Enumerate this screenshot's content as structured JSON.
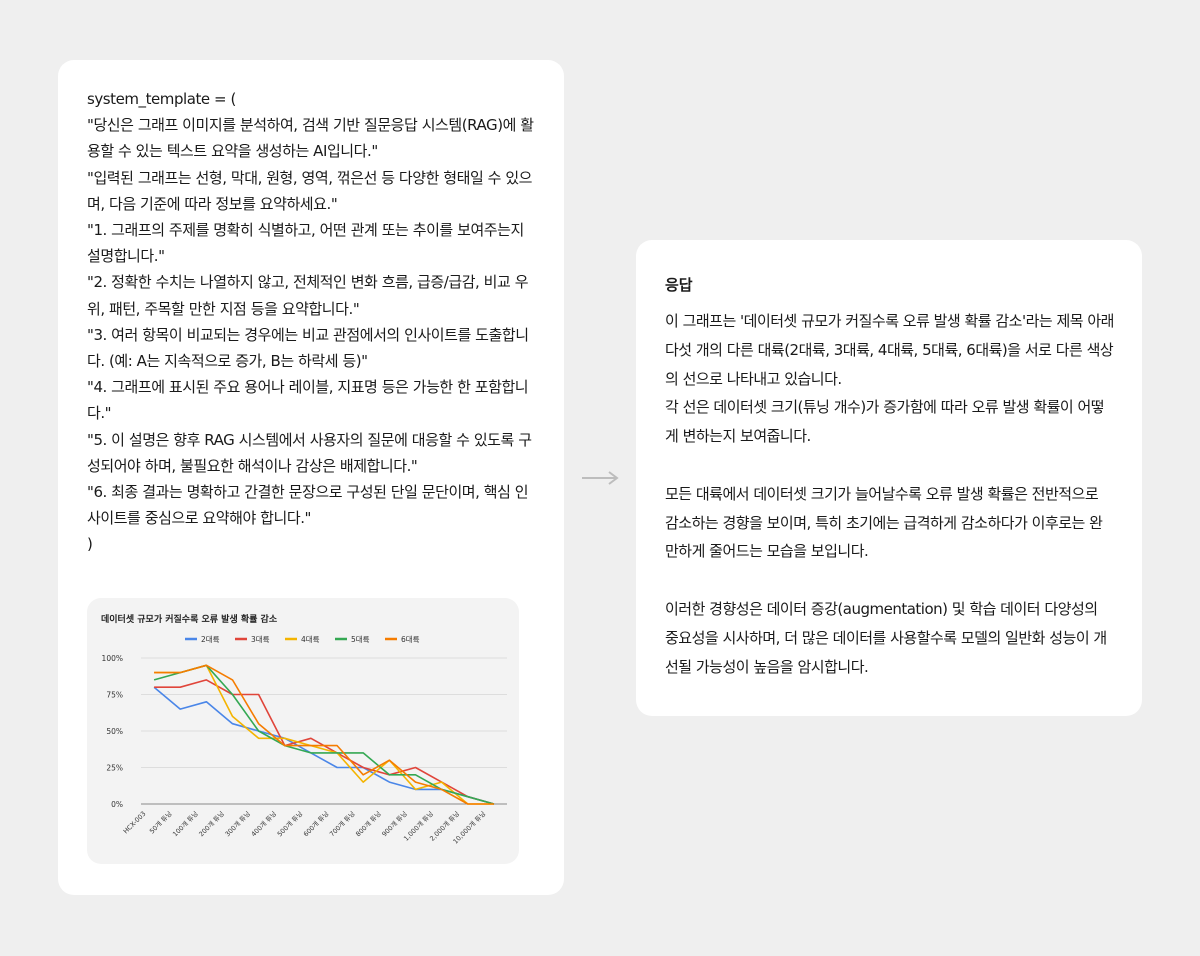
{
  "prompt": {
    "lines": [
      "system_template = (",
      "\"당신은 그래프 이미지를 분석하여, 검색 기반 질문응답 시스템(RAG)에 활용할 수 있는 텍스트 요약을 생성하는 AI입니다.\"",
      "\"입력된 그래프는 선형, 막대, 원형, 영역, 꺾은선 등 다양한 형태일 수 있으며, 다음 기준에 따라 정보를 요약하세요.\"",
      "\"1. 그래프의 주제를 명확히 식별하고, 어떤 관계 또는 추이를 보여주는지 설명합니다.\"",
      "\"2. 정확한 수치는 나열하지 않고, 전체적인 변화 흐름, 급증/급감, 비교 우위, 패턴, 주목할 만한 지점 등을 요약합니다.\"",
      "\"3. 여러 항목이 비교되는 경우에는 비교 관점에서의 인사이트를 도출합니다. (예: A는 지속적으로 증가, B는 하락세 등)\"",
      "\"4. 그래프에 표시된 주요 용어나 레이블, 지표명 등은 가능한 한 포함합니다.\"",
      "\"5. 이 설명은 향후 RAG 시스템에서 사용자의 질문에 대응할 수 있도록 구성되어야 하며, 불필요한 해석이나 감상은 배제합니다.\"",
      "\"6. 최종 결과는 명확하고 간결한 문장으로 구성된 단일 문단이며, 핵심 인사이트를 중심으로 요약해야 합니다.\"",
      ")"
    ]
  },
  "chart_data": {
    "type": "line",
    "title": "데이터셋 규모가 커질수록 오류 발생 확률 감소",
    "categories": [
      "HCX-003",
      "50개 튜닝",
      "100개 튜닝",
      "200개 튜닝",
      "300개 튜닝",
      "400개 튜닝",
      "500개 튜닝",
      "600개 튜닝",
      "700개 튜닝",
      "800개 튜닝",
      "900개 튜닝",
      "1,000개 튜닝",
      "2,000개 튜닝",
      "10,000개 튜닝"
    ],
    "yticks": [
      "100%",
      "75%",
      "50%",
      "25%",
      "0%"
    ],
    "ylim": [
      0,
      100
    ],
    "legend_position": "top",
    "grid": true,
    "series": [
      {
        "name": "2대륙",
        "color": "#4a86e8",
        "values": [
          80,
          65,
          70,
          55,
          50,
          45,
          35,
          25,
          25,
          15,
          10,
          10,
          5,
          0
        ]
      },
      {
        "name": "3대륙",
        "color": "#e0453a",
        "values": [
          80,
          80,
          85,
          75,
          75,
          40,
          45,
          35,
          25,
          20,
          25,
          15,
          5,
          0
        ]
      },
      {
        "name": "4대륙",
        "color": "#f4b400",
        "values": [
          90,
          90,
          95,
          60,
          45,
          45,
          40,
          35,
          15,
          30,
          10,
          15,
          0,
          0
        ]
      },
      {
        "name": "5대륙",
        "color": "#34a853",
        "values": [
          85,
          90,
          95,
          75,
          50,
          40,
          35,
          35,
          35,
          20,
          20,
          10,
          5,
          0
        ]
      },
      {
        "name": "6대륙",
        "color": "#f57c00",
        "values": [
          90,
          90,
          95,
          85,
          55,
          40,
          40,
          40,
          20,
          30,
          15,
          10,
          0,
          0
        ]
      }
    ]
  },
  "response": {
    "title": "응답",
    "paragraphs": [
      "이 그래프는 '데이터셋 규모가 커질수록 오류 발생 확률 감소'라는 제목 아래 다섯 개의 다른 대륙(2대륙, 3대륙, 4대륙, 5대륙, 6대륙)을 서로 다른 색상의 선으로 나타내고 있습니다.",
      "각 선은 데이터셋 크기(튜닝 개수)가 증가함에 따라 오류 발생 확률이 어떻게 변하는지 보여줍니다.",
      "",
      "모든 대륙에서 데이터셋 크기가 늘어날수록 오류 발생 확률은 전반적으로 감소하는 경향을 보이며, 특히 초기에는 급격하게 감소하다가 이후로는 완만하게 줄어드는 모습을 보입니다.",
      "",
      "이러한 경향성은 데이터 증강(augmentation) 및 학습 데이터 다양성의 중요성을 시사하며, 더 많은 데이터를 사용할수록 모델의 일반화 성능이 개선될 가능성이 높음을 암시합니다."
    ]
  },
  "colors": {
    "background": "#efefef",
    "card": "#ffffff",
    "chart_panel": "#f3f3f3",
    "arrow": "#bdbdbd"
  }
}
